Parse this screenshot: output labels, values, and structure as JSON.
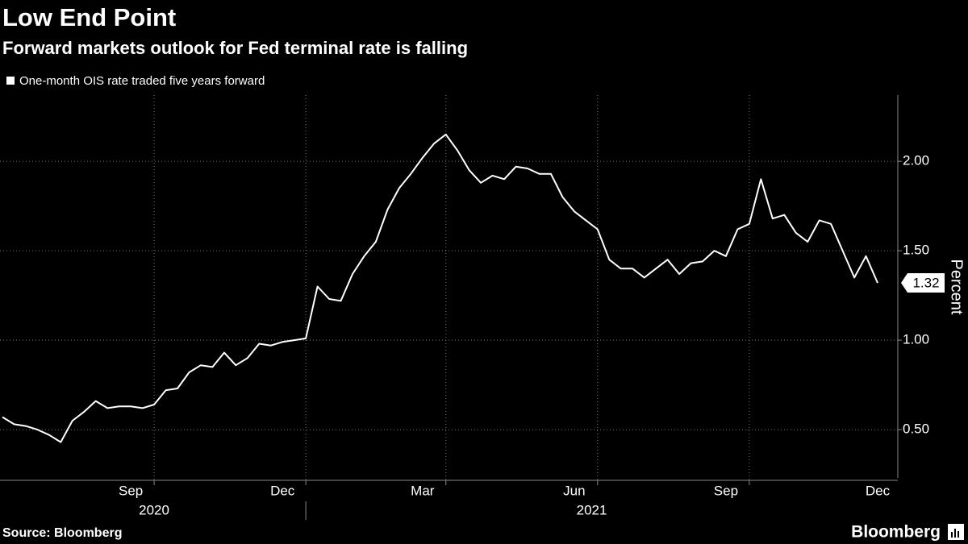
{
  "chart_data": {
    "type": "line",
    "title": "Low End Point",
    "subtitle": "Forward markets outlook for Fed terminal rate is falling",
    "y_label": "Percent",
    "source": "Source: Bloomberg",
    "brand": "Bloomberg",
    "categories": [
      null,
      null,
      null,
      null,
      null,
      null,
      null,
      null,
      null,
      null,
      null,
      "Sep",
      null,
      null,
      null,
      null,
      null,
      null,
      null,
      null,
      null,
      null,
      null,
      null,
      "Dec",
      null,
      null,
      null,
      null,
      null,
      null,
      null,
      null,
      null,
      null,
      null,
      "Mar",
      null,
      null,
      null,
      null,
      null,
      null,
      null,
      null,
      null,
      null,
      null,
      null,
      "Jun",
      null,
      null,
      null,
      null,
      null,
      null,
      null,
      null,
      null,
      null,
      null,
      null,
      "Sep",
      null,
      null,
      null,
      null,
      null,
      null,
      null,
      null,
      null,
      null,
      null,
      null,
      "Dec"
    ],
    "years": [
      "2020",
      "2021"
    ],
    "series": [
      {
        "name": "One-month OIS rate traded five years forward",
        "color": "#ffffff",
        "values": [
          0.57,
          0.53,
          0.52,
          0.5,
          0.47,
          0.43,
          0.55,
          0.6,
          0.66,
          0.62,
          0.63,
          0.63,
          0.62,
          0.64,
          0.72,
          0.73,
          0.82,
          0.86,
          0.85,
          0.93,
          0.86,
          0.9,
          0.98,
          0.97,
          0.99,
          1.0,
          1.01,
          1.3,
          1.23,
          1.22,
          1.37,
          1.47,
          1.55,
          1.73,
          1.85,
          1.93,
          2.02,
          2.1,
          2.15,
          2.06,
          1.95,
          1.88,
          1.92,
          1.9,
          1.97,
          1.96,
          1.93,
          1.93,
          1.8,
          1.72,
          1.67,
          1.62,
          1.45,
          1.4,
          1.4,
          1.35,
          1.4,
          1.45,
          1.37,
          1.43,
          1.44,
          1.5,
          1.47,
          1.62,
          1.65,
          1.9,
          1.68,
          1.7,
          1.6,
          1.55,
          1.67,
          1.65,
          1.5,
          1.35,
          1.47,
          1.32
        ]
      }
    ],
    "ylim": [
      0.23,
      2.37
    ],
    "yticks": [
      {
        "value": 0.5,
        "label": "0.50"
      },
      {
        "value": 1,
        "label": "1.00"
      },
      {
        "value": 1.5,
        "label": "1.50"
      },
      {
        "value": 2,
        "label": "2.00"
      }
    ],
    "grid": true
  }
}
